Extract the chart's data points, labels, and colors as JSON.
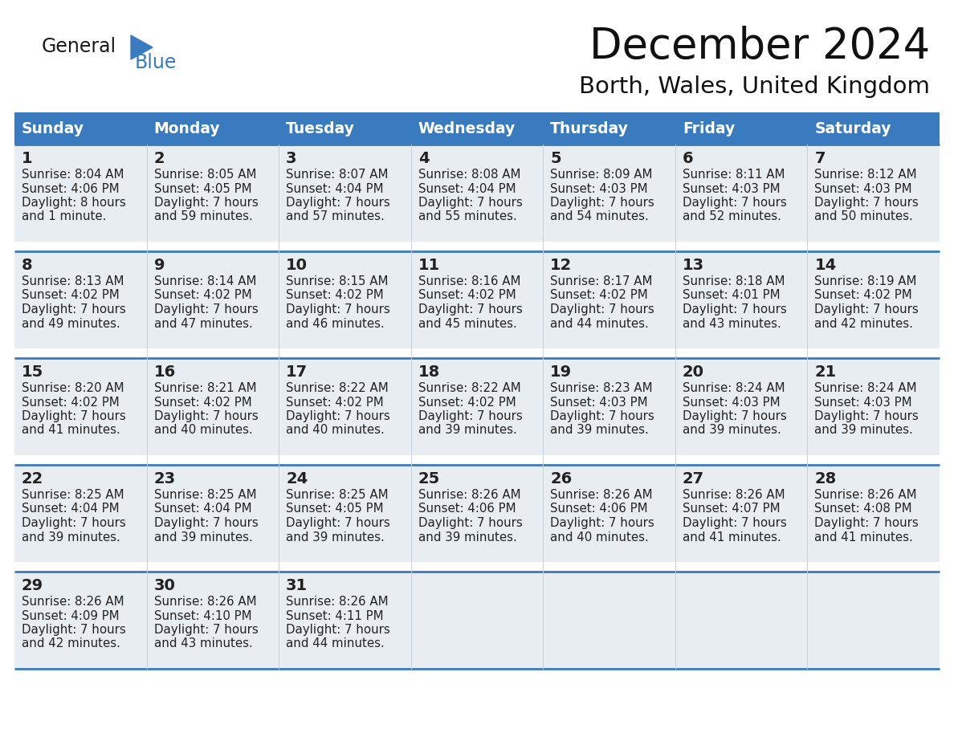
{
  "title": "December 2024",
  "subtitle": "Borth, Wales, United Kingdom",
  "header_color": "#3a7abf",
  "header_text_color": "#ffffff",
  "cell_bg": "#e8edf2",
  "cell_bg_empty": "#ffffff",
  "row_gap_color": "#ffffff",
  "border_color": "#3a7abf",
  "days_of_week": [
    "Sunday",
    "Monday",
    "Tuesday",
    "Wednesday",
    "Thursday",
    "Friday",
    "Saturday"
  ],
  "calendar_data": [
    [
      {
        "day": 1,
        "sunrise": "8:04 AM",
        "sunset": "4:06 PM",
        "daylight_line1": "Daylight: 8 hours",
        "daylight_line2": "and 1 minute."
      },
      {
        "day": 2,
        "sunrise": "8:05 AM",
        "sunset": "4:05 PM",
        "daylight_line1": "Daylight: 7 hours",
        "daylight_line2": "and 59 minutes."
      },
      {
        "day": 3,
        "sunrise": "8:07 AM",
        "sunset": "4:04 PM",
        "daylight_line1": "Daylight: 7 hours",
        "daylight_line2": "and 57 minutes."
      },
      {
        "day": 4,
        "sunrise": "8:08 AM",
        "sunset": "4:04 PM",
        "daylight_line1": "Daylight: 7 hours",
        "daylight_line2": "and 55 minutes."
      },
      {
        "day": 5,
        "sunrise": "8:09 AM",
        "sunset": "4:03 PM",
        "daylight_line1": "Daylight: 7 hours",
        "daylight_line2": "and 54 minutes."
      },
      {
        "day": 6,
        "sunrise": "8:11 AM",
        "sunset": "4:03 PM",
        "daylight_line1": "Daylight: 7 hours",
        "daylight_line2": "and 52 minutes."
      },
      {
        "day": 7,
        "sunrise": "8:12 AM",
        "sunset": "4:03 PM",
        "daylight_line1": "Daylight: 7 hours",
        "daylight_line2": "and 50 minutes."
      }
    ],
    [
      {
        "day": 8,
        "sunrise": "8:13 AM",
        "sunset": "4:02 PM",
        "daylight_line1": "Daylight: 7 hours",
        "daylight_line2": "and 49 minutes."
      },
      {
        "day": 9,
        "sunrise": "8:14 AM",
        "sunset": "4:02 PM",
        "daylight_line1": "Daylight: 7 hours",
        "daylight_line2": "and 47 minutes."
      },
      {
        "day": 10,
        "sunrise": "8:15 AM",
        "sunset": "4:02 PM",
        "daylight_line1": "Daylight: 7 hours",
        "daylight_line2": "and 46 minutes."
      },
      {
        "day": 11,
        "sunrise": "8:16 AM",
        "sunset": "4:02 PM",
        "daylight_line1": "Daylight: 7 hours",
        "daylight_line2": "and 45 minutes."
      },
      {
        "day": 12,
        "sunrise": "8:17 AM",
        "sunset": "4:02 PM",
        "daylight_line1": "Daylight: 7 hours",
        "daylight_line2": "and 44 minutes."
      },
      {
        "day": 13,
        "sunrise": "8:18 AM",
        "sunset": "4:01 PM",
        "daylight_line1": "Daylight: 7 hours",
        "daylight_line2": "and 43 minutes."
      },
      {
        "day": 14,
        "sunrise": "8:19 AM",
        "sunset": "4:02 PM",
        "daylight_line1": "Daylight: 7 hours",
        "daylight_line2": "and 42 minutes."
      }
    ],
    [
      {
        "day": 15,
        "sunrise": "8:20 AM",
        "sunset": "4:02 PM",
        "daylight_line1": "Daylight: 7 hours",
        "daylight_line2": "and 41 minutes."
      },
      {
        "day": 16,
        "sunrise": "8:21 AM",
        "sunset": "4:02 PM",
        "daylight_line1": "Daylight: 7 hours",
        "daylight_line2": "and 40 minutes."
      },
      {
        "day": 17,
        "sunrise": "8:22 AM",
        "sunset": "4:02 PM",
        "daylight_line1": "Daylight: 7 hours",
        "daylight_line2": "and 40 minutes."
      },
      {
        "day": 18,
        "sunrise": "8:22 AM",
        "sunset": "4:02 PM",
        "daylight_line1": "Daylight: 7 hours",
        "daylight_line2": "and 39 minutes."
      },
      {
        "day": 19,
        "sunrise": "8:23 AM",
        "sunset": "4:03 PM",
        "daylight_line1": "Daylight: 7 hours",
        "daylight_line2": "and 39 minutes."
      },
      {
        "day": 20,
        "sunrise": "8:24 AM",
        "sunset": "4:03 PM",
        "daylight_line1": "Daylight: 7 hours",
        "daylight_line2": "and 39 minutes."
      },
      {
        "day": 21,
        "sunrise": "8:24 AM",
        "sunset": "4:03 PM",
        "daylight_line1": "Daylight: 7 hours",
        "daylight_line2": "and 39 minutes."
      }
    ],
    [
      {
        "day": 22,
        "sunrise": "8:25 AM",
        "sunset": "4:04 PM",
        "daylight_line1": "Daylight: 7 hours",
        "daylight_line2": "and 39 minutes."
      },
      {
        "day": 23,
        "sunrise": "8:25 AM",
        "sunset": "4:04 PM",
        "daylight_line1": "Daylight: 7 hours",
        "daylight_line2": "and 39 minutes."
      },
      {
        "day": 24,
        "sunrise": "8:25 AM",
        "sunset": "4:05 PM",
        "daylight_line1": "Daylight: 7 hours",
        "daylight_line2": "and 39 minutes."
      },
      {
        "day": 25,
        "sunrise": "8:26 AM",
        "sunset": "4:06 PM",
        "daylight_line1": "Daylight: 7 hours",
        "daylight_line2": "and 39 minutes."
      },
      {
        "day": 26,
        "sunrise": "8:26 AM",
        "sunset": "4:06 PM",
        "daylight_line1": "Daylight: 7 hours",
        "daylight_line2": "and 40 minutes."
      },
      {
        "day": 27,
        "sunrise": "8:26 AM",
        "sunset": "4:07 PM",
        "daylight_line1": "Daylight: 7 hours",
        "daylight_line2": "and 41 minutes."
      },
      {
        "day": 28,
        "sunrise": "8:26 AM",
        "sunset": "4:08 PM",
        "daylight_line1": "Daylight: 7 hours",
        "daylight_line2": "and 41 minutes."
      }
    ],
    [
      {
        "day": 29,
        "sunrise": "8:26 AM",
        "sunset": "4:09 PM",
        "daylight_line1": "Daylight: 7 hours",
        "daylight_line2": "and 42 minutes."
      },
      {
        "day": 30,
        "sunrise": "8:26 AM",
        "sunset": "4:10 PM",
        "daylight_line1": "Daylight: 7 hours",
        "daylight_line2": "and 43 minutes."
      },
      {
        "day": 31,
        "sunrise": "8:26 AM",
        "sunset": "4:11 PM",
        "daylight_line1": "Daylight: 7 hours",
        "daylight_line2": "and 44 minutes."
      },
      null,
      null,
      null,
      null
    ]
  ],
  "logo_text_general": "General",
  "logo_text_blue": "Blue",
  "logo_color_general": "#1a1a1a",
  "logo_color_blue": "#3a7abf",
  "logo_triangle_color": "#3a7abf"
}
